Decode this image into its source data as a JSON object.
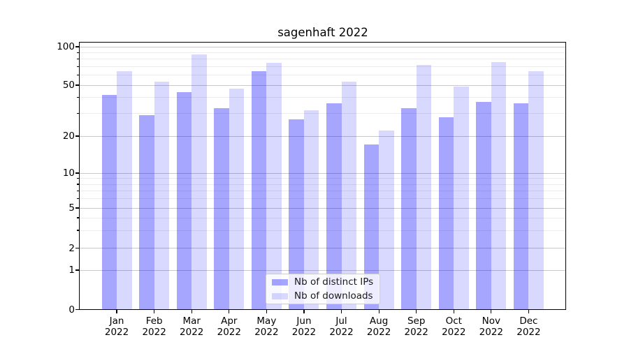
{
  "chart_data": {
    "type": "bar",
    "title": "sagenhaft 2022",
    "categories": [
      "Jan",
      "Feb",
      "Mar",
      "Apr",
      "May",
      "Jun",
      "Jul",
      "Aug",
      "Sep",
      "Oct",
      "Nov",
      "Dec"
    ],
    "year_label": "2022",
    "series": [
      {
        "name": "Nb of distinct IPs",
        "color": "rgba(0,0,255,0.35)",
        "values": [
          42,
          29,
          44,
          33,
          64,
          27,
          36,
          17,
          33,
          28,
          37,
          36
        ]
      },
      {
        "name": "Nb of downloads",
        "color": "rgba(0,0,255,0.15)",
        "values": [
          64,
          53,
          87,
          47,
          75,
          32,
          53,
          22,
          72,
          49,
          76,
          64
        ]
      }
    ],
    "yscale": "symlog",
    "y_ticks": [
      0,
      1,
      2,
      5,
      10,
      20,
      50,
      100
    ],
    "y_minor_ticks": [
      3,
      4,
      6,
      7,
      8,
      9,
      30,
      40,
      60,
      70,
      80,
      90
    ],
    "ylim": [
      0,
      108
    ],
    "grid": "both",
    "legend_position": "lower center inside"
  },
  "colors": {
    "grid_major": "#c8c8c8",
    "grid_minor": "#ececec",
    "spine": "#000000",
    "text": "#000000"
  }
}
